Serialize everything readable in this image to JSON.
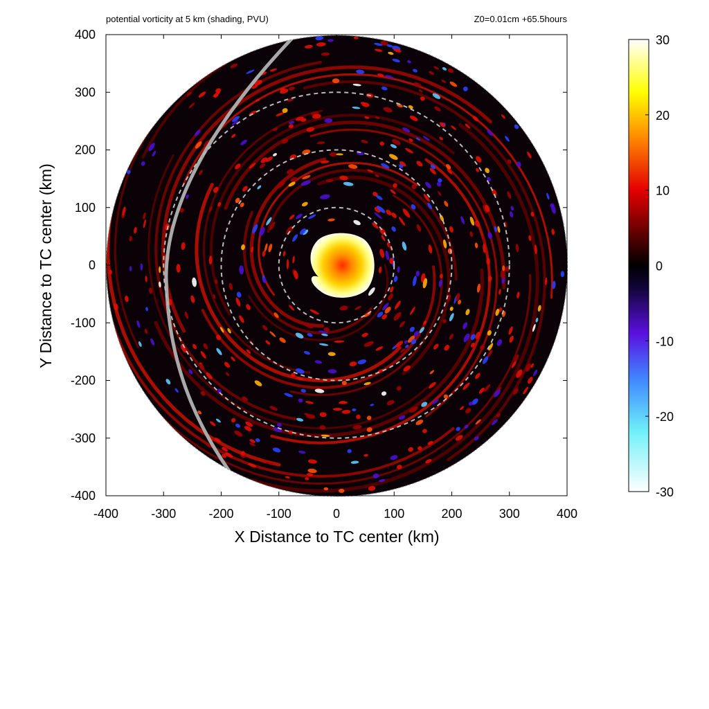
{
  "chart_data": {
    "type": "heatmap",
    "title": "potential vorticity at 5 km (shading, PVU)",
    "subtitle": "Z0=0.01cm  +65.5hours",
    "xlabel": "X Distance to TC center (km)",
    "ylabel": "Y Distance to TC center (km)",
    "xlim": [
      -400,
      400
    ],
    "ylim": [
      -400,
      400
    ],
    "x_ticks": [
      -400,
      -300,
      -200,
      -100,
      0,
      100,
      200,
      300,
      400
    ],
    "y_ticks": [
      -400,
      -300,
      -200,
      -100,
      0,
      100,
      200,
      300,
      400
    ],
    "x_tick_labels": [
      "-400",
      "-300",
      "-200",
      "-100",
      "0",
      "100",
      "200",
      "300",
      "400"
    ],
    "y_tick_labels": [
      "-400",
      "-300",
      "-200",
      "-100",
      "0",
      "100",
      "200",
      "300",
      "400"
    ],
    "domain_radius_km": 400,
    "range_rings_km": [
      100,
      200,
      300
    ],
    "colorbar": {
      "range": [
        -30,
        30
      ],
      "ticks": [
        30,
        20,
        10,
        0,
        -10,
        -20,
        -30
      ],
      "tick_labels": [
        "30",
        "20",
        "10",
        "0",
        "-10",
        "-20",
        "-30"
      ],
      "stops": [
        {
          "value": -30,
          "color": "#ffffff"
        },
        {
          "value": -22,
          "color": "#6ff0f8"
        },
        {
          "value": -15,
          "color": "#3f86ff"
        },
        {
          "value": -9,
          "color": "#5a10e0"
        },
        {
          "value": -3,
          "color": "#12063a"
        },
        {
          "value": 0,
          "color": "#000000"
        },
        {
          "value": 4,
          "color": "#5a0000"
        },
        {
          "value": 10,
          "color": "#e40000"
        },
        {
          "value": 17,
          "color": "#ff8a00"
        },
        {
          "value": 23,
          "color": "#ffff00"
        },
        {
          "value": 30,
          "color": "#ffffff"
        }
      ]
    },
    "features": {
      "eyewall_core_pvu": 30,
      "core_center_km": [
        0,
        5
      ],
      "coastline_color": "#aaaaaa",
      "ring_color": "#bbbbbb"
    }
  }
}
